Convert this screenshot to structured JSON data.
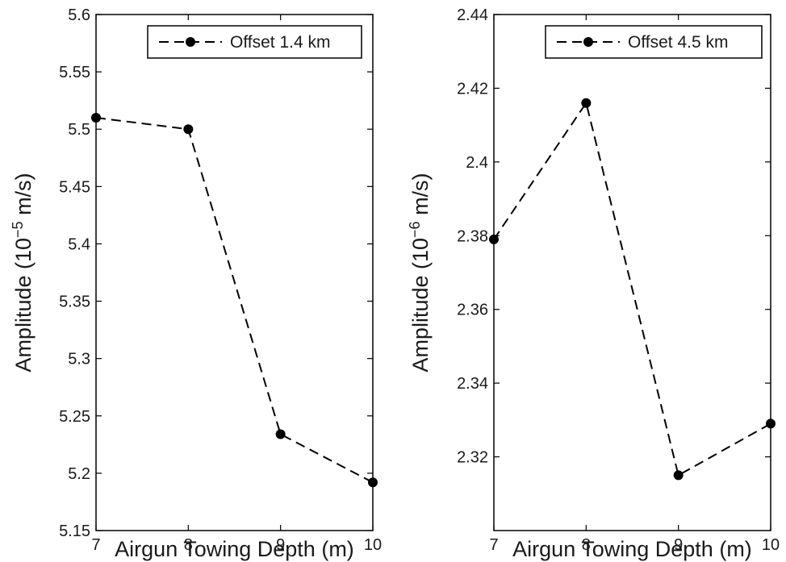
{
  "chart_data": [
    {
      "type": "line",
      "x": [
        7,
        8,
        9,
        10
      ],
      "series": [
        {
          "name": "Offset 1.4 km",
          "values": [
            5.51,
            5.5,
            5.234,
            5.192
          ],
          "style": "dashed",
          "marker": "circle",
          "color": "#000000"
        }
      ],
      "xlabel": "Airgun Towing Depth (m)",
      "ylabel": {
        "text": "Amplitude (10",
        "sup": "−5",
        "unit": " m/s)"
      },
      "xlim": [
        7,
        10
      ],
      "ylim": [
        5.15,
        5.6
      ],
      "xticks": [
        7,
        8,
        9,
        10
      ],
      "xtick_labels": [
        "7",
        "8",
        "9",
        "10"
      ],
      "yticks": [
        5.15,
        5.2,
        5.25,
        5.3,
        5.35,
        5.4,
        5.45,
        5.5,
        5.55,
        5.6
      ],
      "ytick_labels": [
        "5.15",
        "5.2",
        "5.25",
        "5.3",
        "5.35",
        "5.4",
        "5.45",
        "5.5",
        "5.55",
        "5.6"
      ],
      "grid": false,
      "legend_position": "top-right"
    },
    {
      "type": "line",
      "x": [
        7,
        8,
        9,
        10
      ],
      "series": [
        {
          "name": "Offset 4.5 km",
          "values": [
            2.379,
            2.416,
            2.315,
            2.329
          ],
          "style": "dashed",
          "marker": "circle",
          "color": "#000000"
        }
      ],
      "xlabel": "Airgun Towing Depth (m)",
      "ylabel": {
        "text": "Amplitude (10",
        "sup": "−6",
        "unit": " m/s)"
      },
      "xlim": [
        7,
        10
      ],
      "ylim": [
        2.3,
        2.44
      ],
      "xticks": [
        7,
        8,
        9,
        10
      ],
      "xtick_labels": [
        "7",
        "8",
        "9",
        "10"
      ],
      "yticks": [
        2.32,
        2.34,
        2.36,
        2.38,
        2.4,
        2.42,
        2.44
      ],
      "ytick_labels": [
        "2.32",
        "2.34",
        "2.36",
        "2.38",
        "2.4",
        "2.42",
        "2.44"
      ],
      "grid": false,
      "legend_position": "top-right"
    }
  ]
}
